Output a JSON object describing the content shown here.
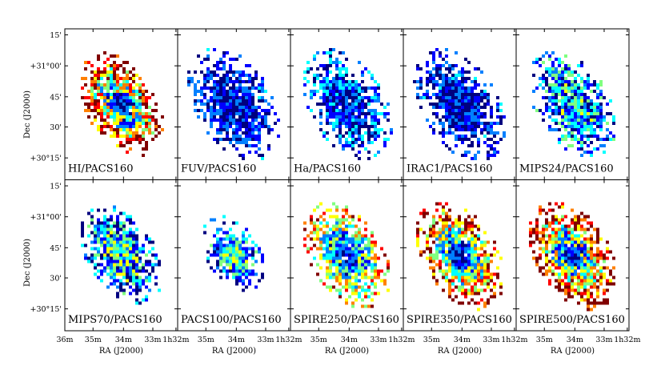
{
  "figure": {
    "rows": 2,
    "cols": 5,
    "ylabel": "Dec (J2000)",
    "xlabel": "RA (J2000)",
    "y_ticks": [
      "15'",
      "+31°00'",
      "45'",
      "30'",
      "+30°15'"
    ],
    "x_ticks_first": [
      "36m",
      "35m",
      "34m",
      "33m",
      "1h32m"
    ],
    "x_ticks_other": [
      "35m",
      "34m",
      "33m",
      "1h32m"
    ],
    "colormap": [
      "#00007f",
      "#0000ff",
      "#0080ff",
      "#00ffff",
      "#80ff80",
      "#ffff00",
      "#ff8000",
      "#ff0000",
      "#800000"
    ],
    "panels": [
      {
        "label": "HI/PACS160",
        "spread": 0.7,
        "centerLevel": 0.1,
        "edgeLevel": 0.95,
        "fill": 0.78,
        "size": 0.82
      },
      {
        "label": "FUV/PACS160",
        "spread": 0.35,
        "centerLevel": 0.12,
        "edgeLevel": 0.18,
        "fill": 0.62,
        "size": 0.9
      },
      {
        "label": "Ha/PACS160",
        "spread": 0.45,
        "centerLevel": 0.12,
        "edgeLevel": 0.22,
        "fill": 0.66,
        "size": 0.88
      },
      {
        "label": "IRAC1/PACS160",
        "spread": 0.4,
        "centerLevel": 0.12,
        "edgeLevel": 0.15,
        "fill": 0.6,
        "size": 0.9
      },
      {
        "label": "MIPS24/PACS160",
        "spread": 0.55,
        "centerLevel": 0.35,
        "edgeLevel": 0.25,
        "fill": 0.66,
        "size": 0.85
      },
      {
        "label": "MIPS70/PACS160",
        "spread": 0.55,
        "centerLevel": 0.45,
        "edgeLevel": 0.18,
        "fill": 0.66,
        "size": 0.8
      },
      {
        "label": "PACS100/PACS160",
        "spread": 0.5,
        "centerLevel": 0.5,
        "edgeLevel": 0.2,
        "fill": 0.55,
        "size": 0.62
      },
      {
        "label": "SPIRE250/PACS160",
        "spread": 0.55,
        "centerLevel": 0.12,
        "edgeLevel": 0.7,
        "fill": 0.72,
        "size": 0.84
      },
      {
        "label": "SPIRE350/PACS160",
        "spread": 0.6,
        "centerLevel": 0.1,
        "edgeLevel": 0.85,
        "fill": 0.74,
        "size": 0.86
      },
      {
        "label": "SPIRE500/PACS160",
        "spread": 0.65,
        "centerLevel": 0.08,
        "edgeLevel": 0.95,
        "fill": 0.76,
        "size": 0.86
      }
    ]
  }
}
